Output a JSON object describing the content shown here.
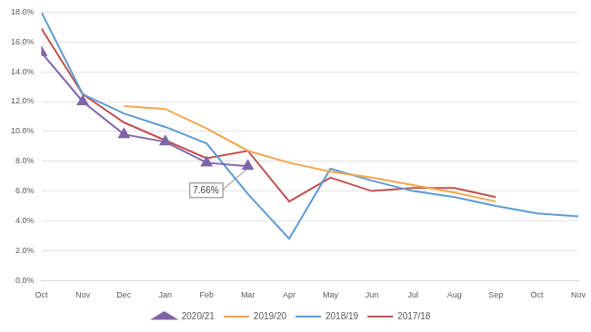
{
  "chart_data": {
    "type": "line",
    "categories": [
      "Oct",
      "Nov",
      "Dec",
      "Jan",
      "Feb",
      "Mar",
      "Apr",
      "May",
      "Jun",
      "Jul",
      "Aug",
      "Sep",
      "Oct",
      "Nov"
    ],
    "series": [
      {
        "name": "2020/21",
        "color": "#7f65a8",
        "marker": "triangle",
        "line_style": "solid",
        "values": [
          15.3,
          12.0,
          9.8,
          9.3,
          7.9,
          7.66,
          null,
          null,
          null,
          null,
          null,
          null,
          null,
          null
        ]
      },
      {
        "name": "2019/20",
        "color": "#f5a54a",
        "marker": "none",
        "line_style": "solid",
        "values": [
          null,
          null,
          11.7,
          11.5,
          10.2,
          8.7,
          7.9,
          7.3,
          6.9,
          6.4,
          5.9,
          5.3,
          null,
          null
        ]
      },
      {
        "name": "2018/19",
        "color": "#5b9bd5",
        "marker": "none",
        "line_style": "solid",
        "values": [
          18.0,
          12.5,
          11.2,
          10.3,
          9.2,
          5.8,
          2.8,
          7.5,
          6.7,
          6.0,
          5.6,
          5.0,
          4.5,
          4.3
        ]
      },
      {
        "name": "2017/18",
        "color": "#c0504d",
        "marker": "none",
        "line_style": "solid",
        "values": [
          16.9,
          12.5,
          10.6,
          9.4,
          8.2,
          8.7,
          5.3,
          6.9,
          6.0,
          6.2,
          6.2,
          5.6,
          null,
          null
        ]
      }
    ],
    "ylim": [
      0,
      18
    ],
    "yticks": [
      {
        "value": 0,
        "label": "0.0%"
      },
      {
        "value": 2,
        "label": "2.0%"
      },
      {
        "value": 4,
        "label": "4.0%"
      },
      {
        "value": 6,
        "label": "6.0%"
      },
      {
        "value": 8,
        "label": "8.0%"
      },
      {
        "value": 10,
        "label": "10.0%"
      },
      {
        "value": 12,
        "label": "12.0%"
      },
      {
        "value": 14,
        "label": "14.0%"
      },
      {
        "value": 16,
        "label": "16.0%"
      },
      {
        "value": 18,
        "label": "18.0%"
      }
    ],
    "grid": true,
    "legend": "bottom",
    "annotations": [
      {
        "text": "7.66%",
        "x": "Mar",
        "y": 7.66
      }
    ]
  }
}
